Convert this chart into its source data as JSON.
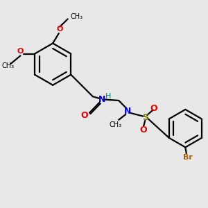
{
  "bg_color": "#e8e8e8",
  "bond_color": "#000000",
  "N_color": "#0000ee",
  "O_color": "#ee0000",
  "S_color": "#808000",
  "Br_color": "#b06000",
  "H_color": "#008080",
  "figsize": [
    3.0,
    3.0
  ],
  "dpi": 100,
  "xlim": [
    0,
    10
  ],
  "ylim": [
    0,
    10
  ]
}
